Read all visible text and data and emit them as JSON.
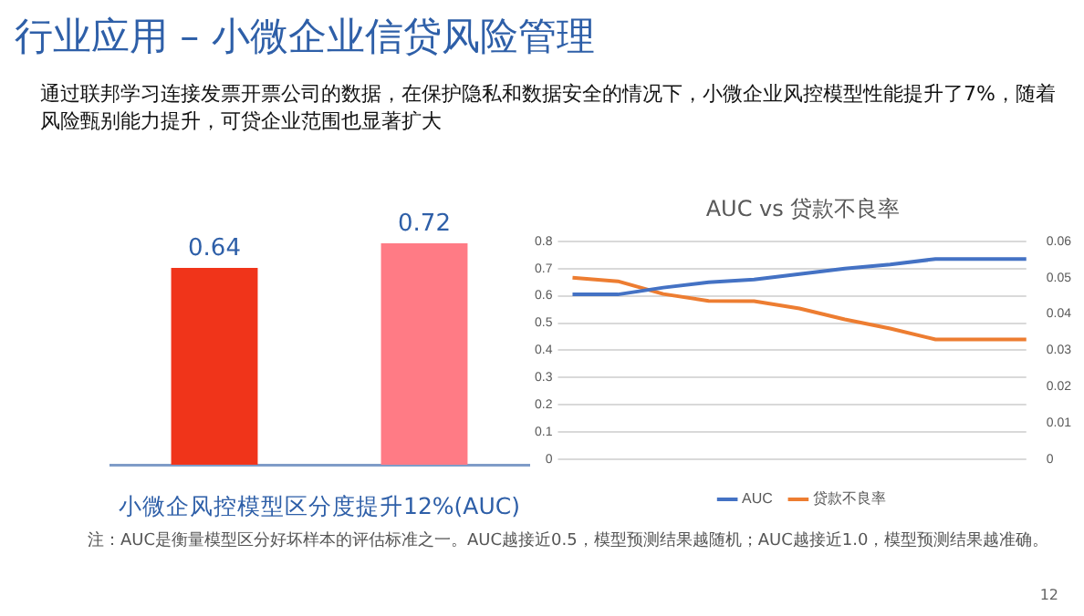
{
  "chart_data": [
    {
      "type": "bar",
      "title": "行业应用 – 小微企业信贷风险管理",
      "subtitle": "通过联邦学习连接发票开票公司的数据，在保护隐私和数据安全的情况下，小微企业风控模型性能提升了7%，随着风险甄别能力提升，可贷企业范围也显著扩大",
      "xlabel": "小微企风控模型区分度提升12%(AUC)",
      "categories": [
        null,
        null
      ],
      "values": [
        0.64,
        0.72
      ],
      "colors": [
        "#f0341a",
        "#ff7b85"
      ],
      "data_labels": true,
      "tick_labels": false,
      "legend": false,
      "grid": false
    },
    {
      "type": "line",
      "title": "AUC vs 贷款不良率",
      "categories": [
        null,
        null,
        null,
        null,
        null,
        null,
        null,
        null,
        null,
        null,
        null
      ],
      "series": [
        {
          "name": "AUC",
          "color": "#4472c4",
          "values": [
            0.605,
            0.605,
            0.63,
            0.65,
            0.66,
            0.68,
            0.7,
            0.715,
            0.735,
            0.735,
            0.735
          ]
        },
        {
          "name": "贷款不良率",
          "color": "#ed7d31",
          "axis": "y2",
          "values": [
            0.05,
            0.049,
            0.0455,
            0.0436,
            0.0435,
            0.0415,
            0.0385,
            0.036,
            0.033,
            0.033,
            0.033
          ]
        }
      ],
      "ylim": [
        0,
        0.8
      ],
      "yticks": [
        0,
        0.1,
        0.2,
        0.3,
        0.4,
        0.5,
        0.6,
        0.7,
        0.8
      ],
      "y2lim": [
        0,
        0.06
      ],
      "y2ticks": [
        0,
        0.01,
        0.02,
        0.03,
        0.04,
        0.05,
        0.06
      ],
      "grid": "y",
      "legend": "bottom",
      "marker": "none",
      "line_style": "solid",
      "tick_labels": "y",
      "annotations": [
        "注：AUC是衡量模型区分好坏样本的评估标准之一。AUC越接近0.5，模型预测结果越随机；AUC越接近1.0，模型预测结果越准确。",
        "12"
      ]
    }
  ]
}
